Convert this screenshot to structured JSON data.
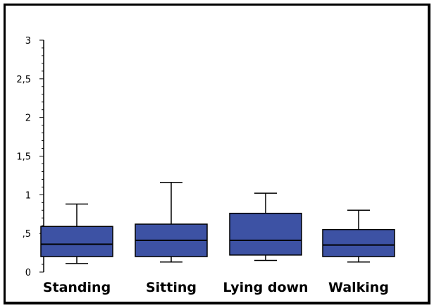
{
  "chart_data": {
    "type": "box",
    "categories": [
      "Standing",
      "Sitting",
      "Lying down",
      "Walking"
    ],
    "boxes": [
      {
        "category": "Standing",
        "min": 0.11,
        "q1": 0.2,
        "median": 0.36,
        "q3": 0.59,
        "max": 0.88
      },
      {
        "category": "Sitting",
        "min": 0.13,
        "q1": 0.2,
        "median": 0.41,
        "q3": 0.62,
        "max": 1.16
      },
      {
        "category": "Lying down",
        "min": 0.15,
        "q1": 0.22,
        "median": 0.41,
        "q3": 0.76,
        "max": 1.02
      },
      {
        "category": "Walking",
        "min": 0.13,
        "q1": 0.2,
        "median": 0.35,
        "q3": 0.55,
        "max": 0.8
      }
    ],
    "ylim": [
      0,
      3
    ],
    "yticks": [
      0,
      0.5,
      1,
      1.5,
      2,
      2.5,
      3
    ],
    "ytick_labels": [
      "0",
      ",5",
      "1",
      "1,5",
      "2",
      "2,5",
      "3"
    ],
    "minor_ticks_per_interval": 5,
    "grid": false,
    "colors": {
      "box_fill": "#3D52A4",
      "box_stroke": "#000000",
      "whisker": "#000000",
      "frame": "#000000"
    }
  }
}
